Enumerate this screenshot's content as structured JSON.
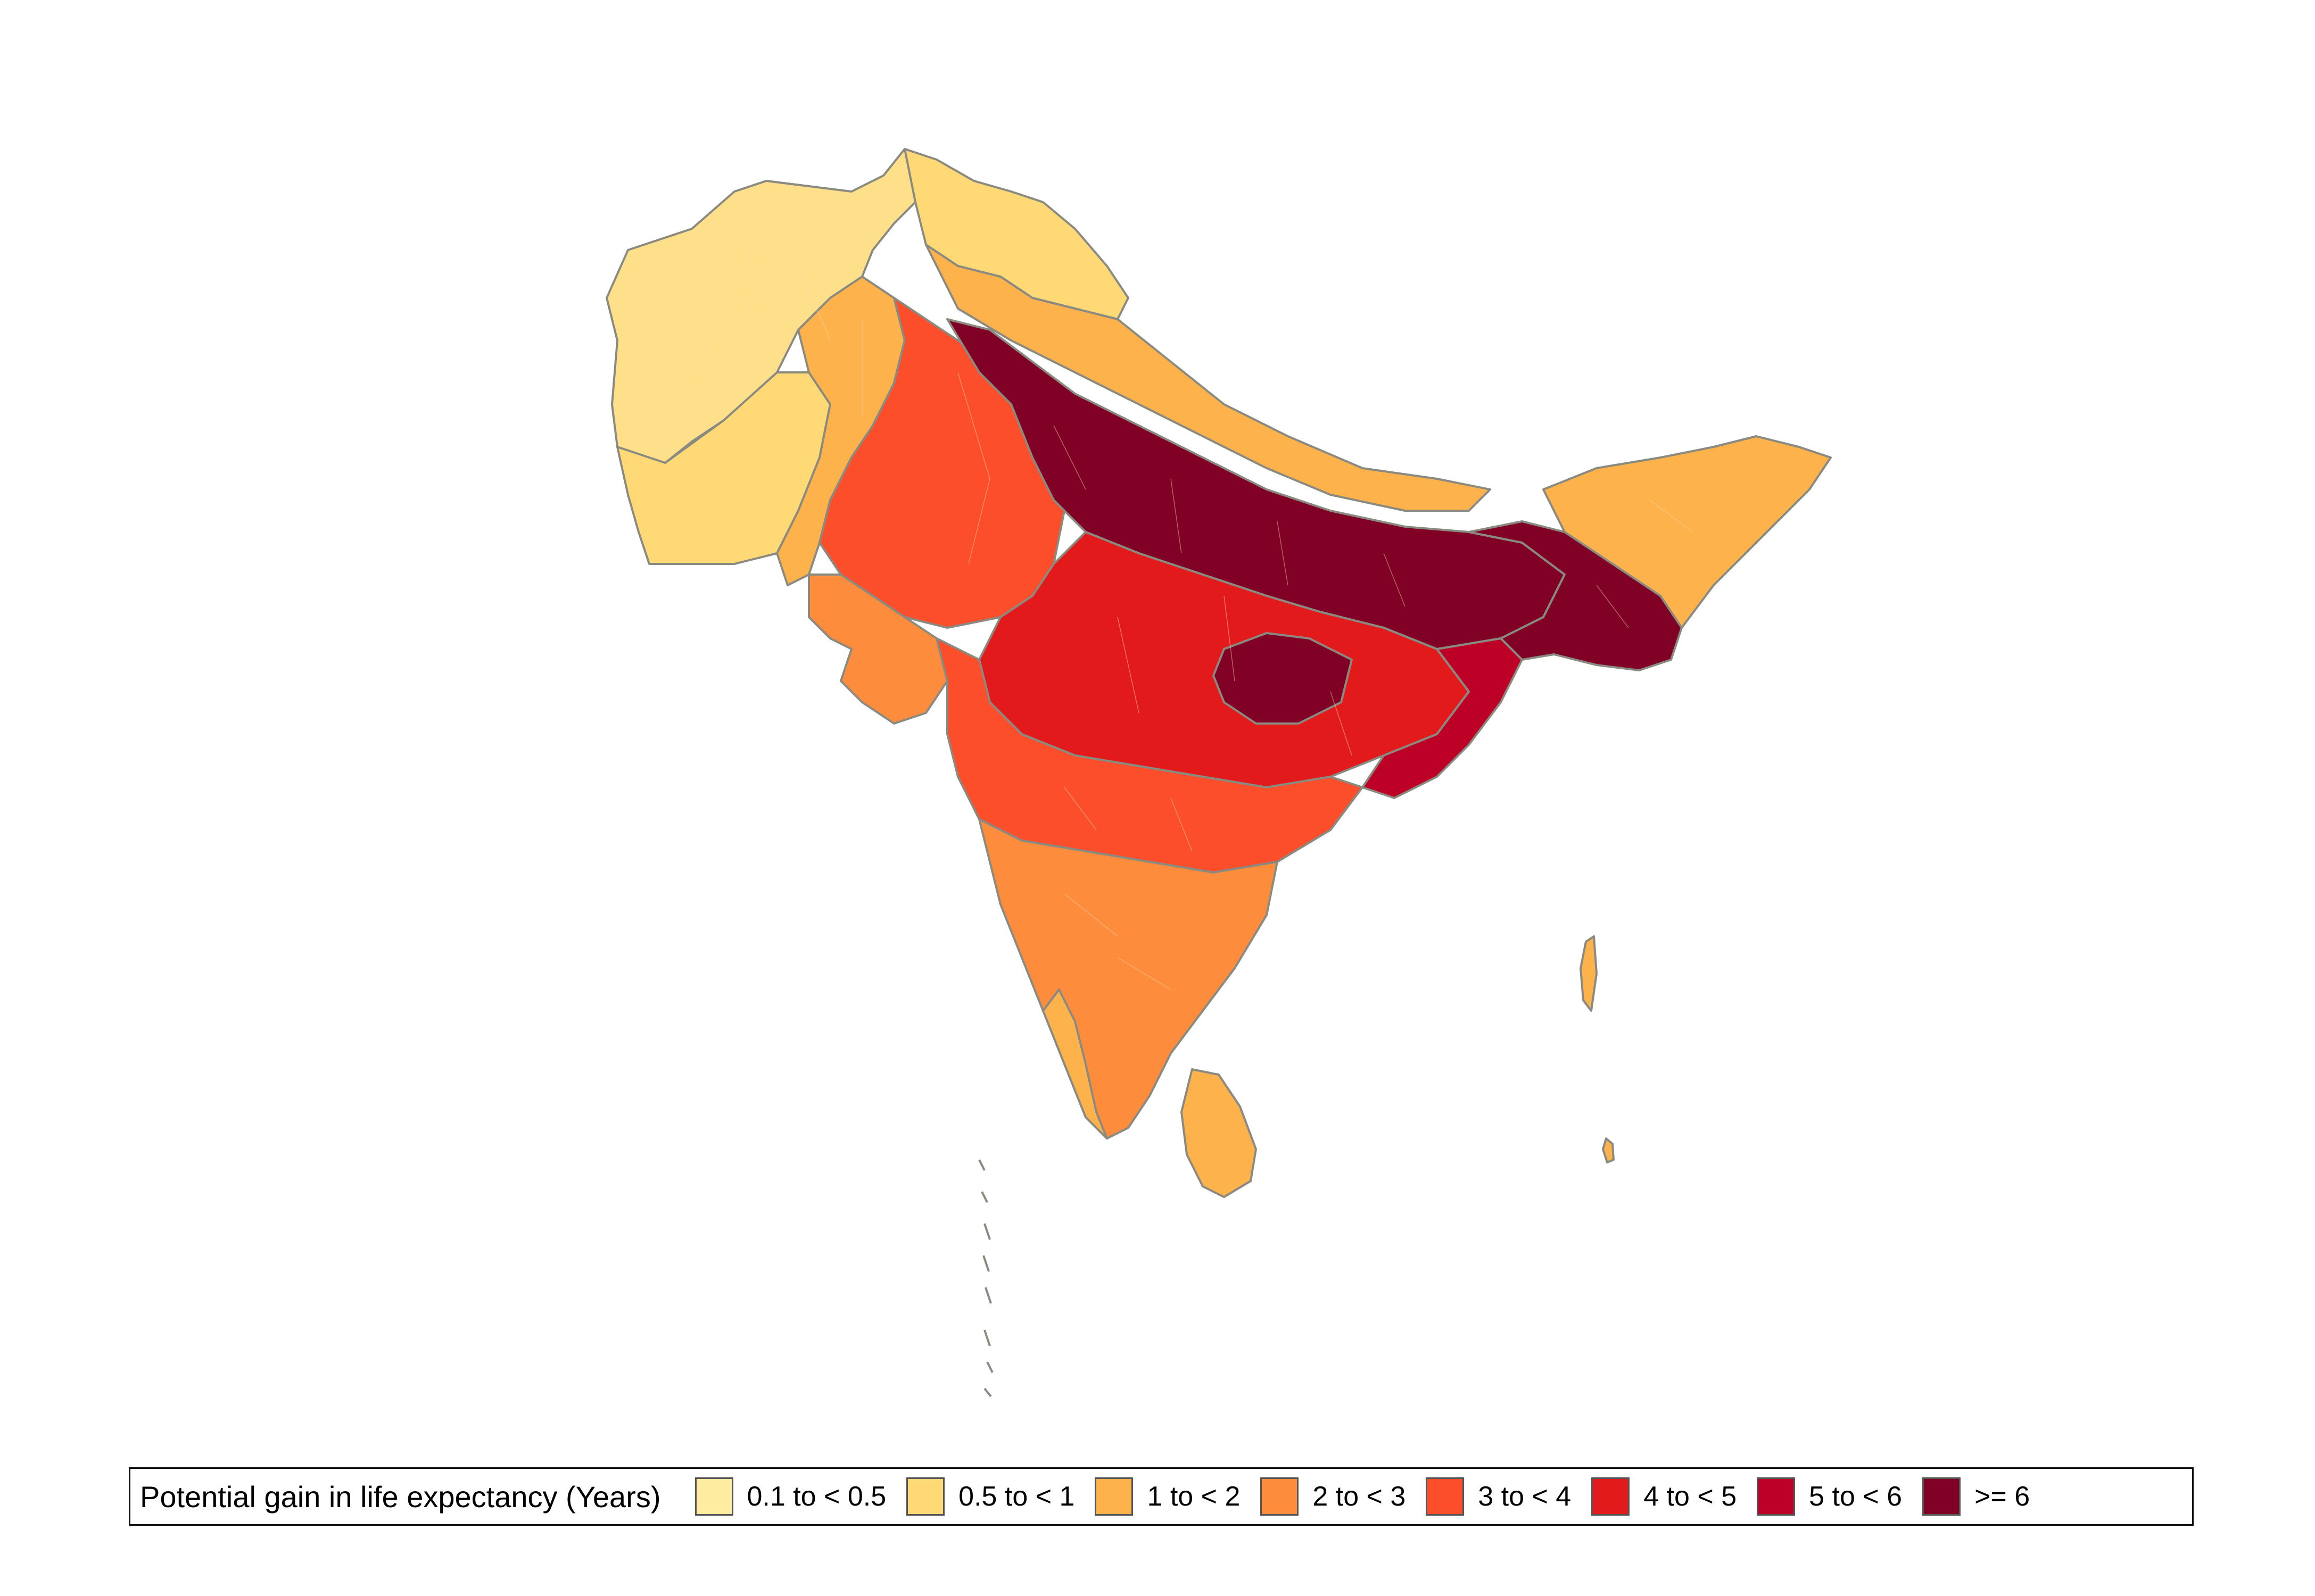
{
  "legend": {
    "title": "Potential gain in life expectancy (Years)",
    "items": [
      {
        "label": "0.1 to < 0.5",
        "color": "#FEEDA0"
      },
      {
        "label": "0.5 to < 1",
        "color": "#FED976"
      },
      {
        "label": "1 to < 2",
        "color": "#FEB24C"
      },
      {
        "label": "2 to < 3",
        "color": "#FD8D3C"
      },
      {
        "label": "3 to < 4",
        "color": "#FC4E2A"
      },
      {
        "label": "4 to < 5",
        "color": "#E31A1C"
      },
      {
        "label": "5 to < 6",
        "color": "#BD0026"
      },
      {
        "label": ">= 6",
        "color": "#800026"
      }
    ]
  },
  "map": {
    "region": "South Asia",
    "border_color": "#7f7f7f",
    "district_line_color": "#f3d9b0"
  }
}
